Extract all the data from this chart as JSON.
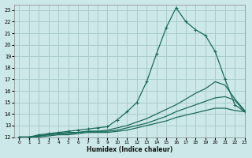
{
  "xlabel": "Humidex (Indice chaleur)",
  "ylabel": "",
  "bg_color": "#cce8e8",
  "grid_color": "#aacccc",
  "line_color": "#1a6b5a",
  "xlim": [
    -0.5,
    23
  ],
  "ylim": [
    12,
    23.5
  ],
  "xticks": [
    0,
    1,
    2,
    3,
    4,
    5,
    6,
    7,
    8,
    9,
    10,
    11,
    12,
    13,
    14,
    15,
    16,
    17,
    18,
    19,
    20,
    21,
    22,
    23
  ],
  "yticks": [
    12,
    13,
    14,
    15,
    16,
    17,
    18,
    19,
    20,
    21,
    22,
    23
  ],
  "series": [
    {
      "x": [
        0,
        1,
        2,
        3,
        4,
        5,
        6,
        7,
        8,
        9,
        10,
        11,
        12,
        13,
        14,
        15,
        16,
        17,
        18,
        19,
        20,
        21,
        22,
        23
      ],
      "y": [
        12,
        12,
        12.2,
        12.3,
        12.4,
        12.5,
        12.6,
        12.7,
        12.8,
        12.9,
        13.5,
        14.2,
        15.0,
        16.8,
        19.2,
        21.5,
        23.2,
        22.0,
        21.3,
        20.8,
        19.4,
        17.0,
        14.8,
        14.2
      ],
      "marker": "+"
    },
    {
      "x": [
        0,
        1,
        2,
        3,
        4,
        5,
        6,
        7,
        8,
        9,
        10,
        11,
        12,
        13,
        14,
        15,
        16,
        17,
        18,
        19,
        20,
        21,
        22,
        23
      ],
      "y": [
        12,
        12,
        12.1,
        12.2,
        12.3,
        12.4,
        12.4,
        12.5,
        12.5,
        12.6,
        12.8,
        13.0,
        13.3,
        13.6,
        14.0,
        14.4,
        14.8,
        15.3,
        15.8,
        16.2,
        16.8,
        16.5,
        15.3,
        14.3
      ],
      "marker": null
    },
    {
      "x": [
        0,
        1,
        2,
        3,
        4,
        5,
        6,
        7,
        8,
        9,
        10,
        11,
        12,
        13,
        14,
        15,
        16,
        17,
        18,
        19,
        20,
        21,
        22,
        23
      ],
      "y": [
        12,
        12,
        12.1,
        12.2,
        12.3,
        12.3,
        12.4,
        12.5,
        12.5,
        12.5,
        12.6,
        12.8,
        13.0,
        13.2,
        13.5,
        13.8,
        14.2,
        14.5,
        14.8,
        15.1,
        15.4,
        15.5,
        15.2,
        14.2
      ],
      "marker": null
    },
    {
      "x": [
        0,
        1,
        2,
        3,
        4,
        5,
        6,
        7,
        8,
        9,
        10,
        11,
        12,
        13,
        14,
        15,
        16,
        17,
        18,
        19,
        20,
        21,
        22,
        23
      ],
      "y": [
        12,
        12,
        12.0,
        12.1,
        12.2,
        12.2,
        12.3,
        12.4,
        12.4,
        12.4,
        12.5,
        12.6,
        12.8,
        13.0,
        13.2,
        13.4,
        13.7,
        13.9,
        14.1,
        14.3,
        14.5,
        14.5,
        14.3,
        14.2
      ],
      "marker": null
    }
  ]
}
